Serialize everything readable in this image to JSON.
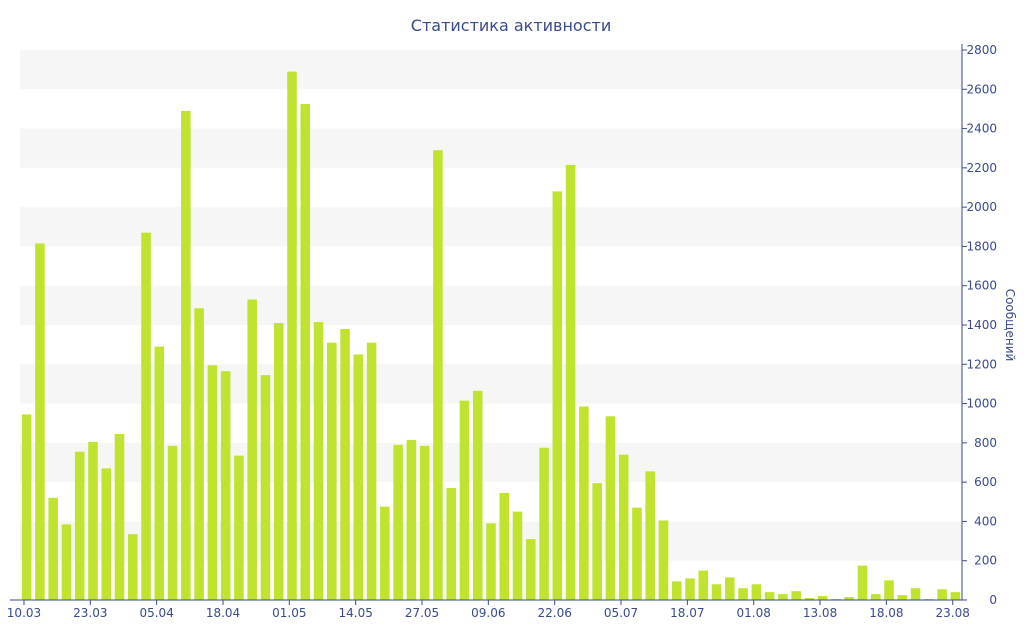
{
  "chart_data": {
    "type": "bar",
    "title": "Статистика активности",
    "ylabel": "Сообщений",
    "xlabel": "",
    "ylim": [
      0,
      2800
    ],
    "y_ticks": [
      0,
      200,
      400,
      600,
      800,
      1000,
      1200,
      1400,
      1600,
      1800,
      2000,
      2200,
      2400,
      2600,
      2800
    ],
    "y_axis_side": "right",
    "grid": "alternating horizontal bands",
    "colors": {
      "bar": "#bfe32e",
      "band": "#f6f6f6",
      "axis": "#3a4a8c"
    },
    "x_tick_labels": [
      {
        "index": 0,
        "label": "10.03"
      },
      {
        "index": 5,
        "label": "23.03"
      },
      {
        "index": 10,
        "label": "05.04"
      },
      {
        "index": 15,
        "label": "18.04"
      },
      {
        "index": 20,
        "label": "01.05"
      },
      {
        "index": 25,
        "label": "14.05"
      },
      {
        "index": 30,
        "label": "27.05"
      },
      {
        "index": 35,
        "label": "09.06"
      },
      {
        "index": 40,
        "label": "22.06"
      },
      {
        "index": 45,
        "label": "05.07"
      },
      {
        "index": 50,
        "label": "18.07"
      },
      {
        "index": 55,
        "label": "01.08"
      },
      {
        "index": 60,
        "label": "13.08"
      },
      {
        "index": 65,
        "label": "18.08"
      },
      {
        "index": 70,
        "label": "23.08"
      }
    ],
    "values": [
      945,
      1815,
      520,
      385,
      755,
      805,
      670,
      845,
      335,
      1870,
      1290,
      785,
      2490,
      1485,
      1195,
      1165,
      735,
      1530,
      1145,
      1410,
      2690,
      2525,
      1415,
      1310,
      1380,
      1250,
      1310,
      475,
      790,
      815,
      785,
      2290,
      570,
      1015,
      1065,
      390,
      545,
      450,
      310,
      775,
      2080,
      2215,
      985,
      595,
      935,
      740,
      470,
      655,
      405,
      95,
      110,
      150,
      80,
      115,
      60,
      80,
      40,
      30,
      45,
      10,
      20,
      5,
      15,
      175,
      30,
      100,
      25,
      60,
      5,
      55,
      40
    ]
  }
}
